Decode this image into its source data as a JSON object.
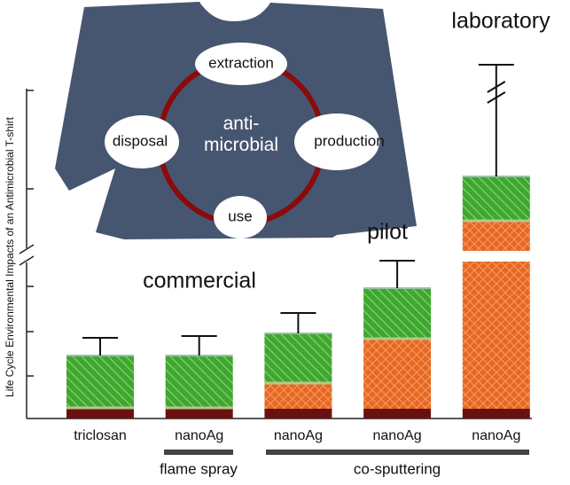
{
  "chart_data": {
    "type": "bar",
    "stacked": true,
    "ylabel": "Life Cycle Environmental Impacts  of an Antimicrobial T-shirt",
    "categories": [
      "triclosan",
      "nanoAg",
      "nanoAg",
      "nanoAg",
      "nanoAg"
    ],
    "series": [
      {
        "color": "#6b1010",
        "values": [
          11,
          11,
          11,
          11,
          11
        ]
      },
      {
        "color": "#e8671f",
        "values": [
          0,
          0,
          28,
          78,
          211
        ]
      },
      {
        "color": "#3da82c",
        "values": [
          60,
          60,
          57,
          58,
          51
        ]
      }
    ],
    "errors": [
      20,
      22,
      23,
      31,
      126
    ],
    "ylim": [
      0,
      400
    ],
    "yticks": [
      48,
      98,
      149,
      259,
      370
    ],
    "groups": [
      "flame spray",
      "co-sputtering"
    ],
    "annotations": [
      "commercial",
      "pilot",
      "laboratory"
    ],
    "shirt": {
      "center": "anti-\nmicrobial",
      "stages": [
        "extraction",
        "disposal",
        "production",
        "use"
      ]
    }
  }
}
